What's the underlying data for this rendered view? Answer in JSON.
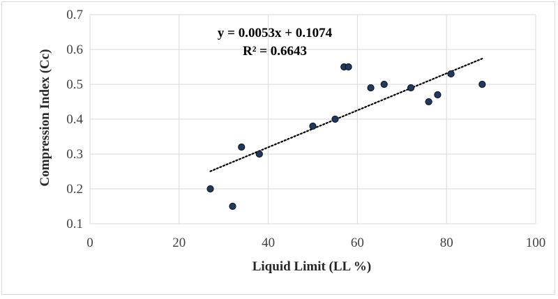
{
  "chart_data": {
    "type": "scatter",
    "xlabel": "Liquid Limit (LL %)",
    "ylabel": "Compression Index (Cc)",
    "xlim": [
      0,
      100
    ],
    "ylim": [
      0.1,
      0.7
    ],
    "x_ticks": [
      "0",
      "20",
      "40",
      "60",
      "80",
      "100"
    ],
    "y_ticks": [
      "0.1",
      "0.2",
      "0.3",
      "0.4",
      "0.5",
      "0.6",
      "0.7"
    ],
    "grid": true,
    "series": [
      {
        "points": [
          {
            "x": 27,
            "y": 0.2
          },
          {
            "x": 32,
            "y": 0.15
          },
          {
            "x": 34,
            "y": 0.32
          },
          {
            "x": 38,
            "y": 0.3
          },
          {
            "x": 50,
            "y": 0.38
          },
          {
            "x": 55,
            "y": 0.4
          },
          {
            "x": 57,
            "y": 0.55
          },
          {
            "x": 58,
            "y": 0.55
          },
          {
            "x": 63,
            "y": 0.49
          },
          {
            "x": 66,
            "y": 0.5
          },
          {
            "x": 72,
            "y": 0.49
          },
          {
            "x": 76,
            "y": 0.45
          },
          {
            "x": 78,
            "y": 0.47
          },
          {
            "x": 81,
            "y": 0.53
          },
          {
            "x": 88,
            "y": 0.5
          }
        ],
        "marker_color": "#1f3a5f"
      }
    ],
    "trendline": {
      "type": "linear",
      "slope": 0.0053,
      "intercept": 0.1074,
      "x_range": [
        27,
        88
      ],
      "equation": "y = 0.0053x + 0.1074",
      "r_squared": "R² = 0.6643",
      "style": "dotted",
      "color": "#000000"
    },
    "colors": {
      "grid": "#d9d9d9",
      "marker": "#1f3a5f",
      "marker_edge": "#0a0f18"
    }
  }
}
